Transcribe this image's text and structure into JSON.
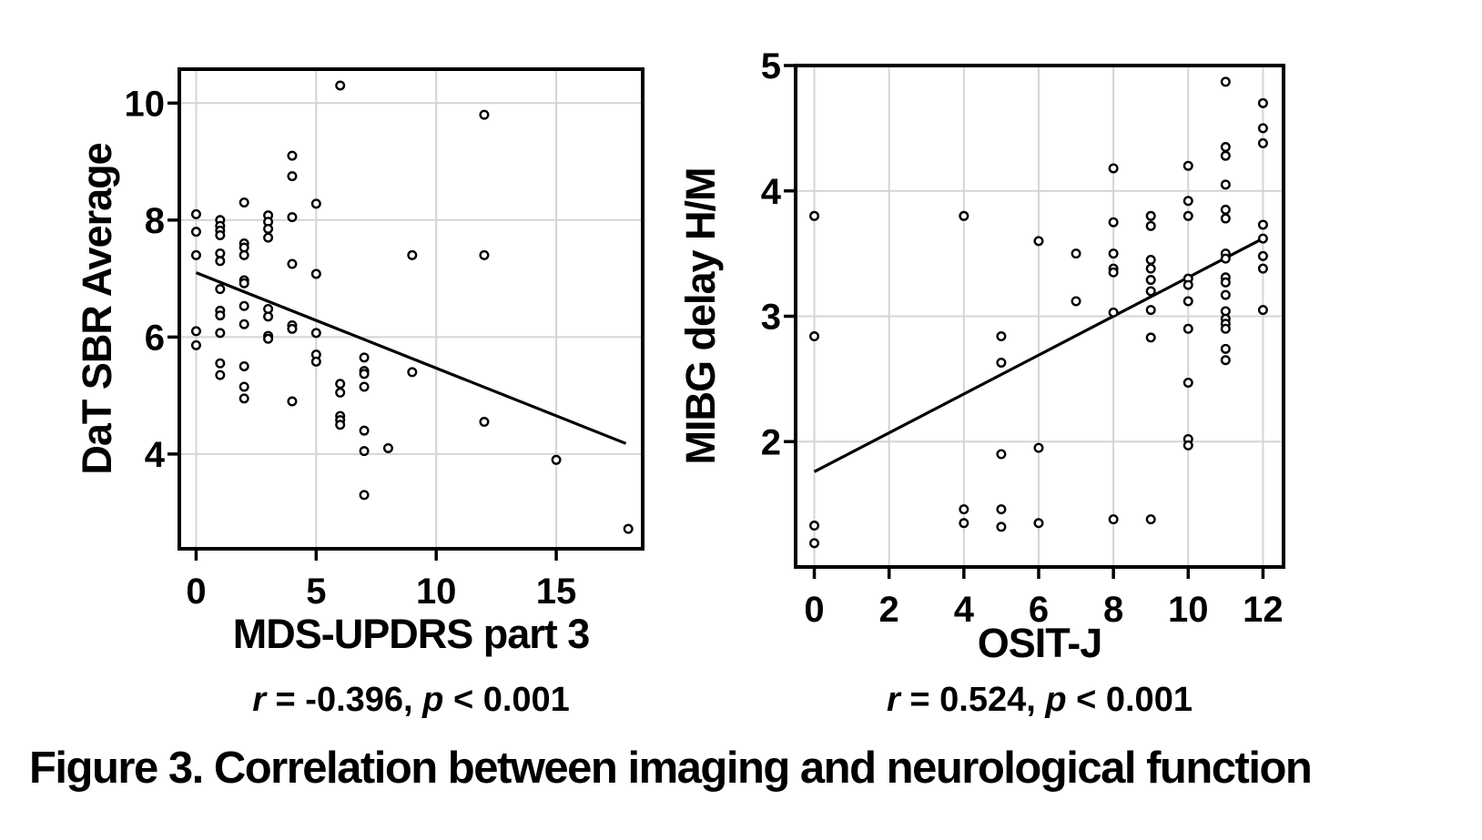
{
  "figure": {
    "caption": "Figure 3. Correlation between imaging and neurological function"
  },
  "style": {
    "axis_color": "#000000",
    "grid_color": "#d4d4d4",
    "point_stroke": "#000000",
    "point_fill": "#ffffff",
    "trend_color": "#000000",
    "text_color": "#000000"
  },
  "chart_data": [
    {
      "type": "scatter",
      "title": "",
      "ylabel": "DaT SBR Average",
      "xlabel": "MDS-UPDRS part 3",
      "stats_text": "r = -0.396, p < 0.001",
      "stats_segments": [
        {
          "t": "r",
          "i": true
        },
        {
          "t": " = -0.396, ",
          "i": false
        },
        {
          "t": "p",
          "i": true
        },
        {
          "t": " < 0.001",
          "i": false
        }
      ],
      "x_ticks": [
        0,
        5,
        10,
        15
      ],
      "y_ticks": [
        4,
        6,
        8,
        10
      ],
      "xlim": [
        -0.7,
        18.6
      ],
      "ylim": [
        2.38,
        10.58
      ],
      "grid": true,
      "legend": "none",
      "trend_line": {
        "x1": 0,
        "y1": 7.1,
        "x2": 17.9,
        "y2": 4.18
      },
      "points": [
        [
          0,
          8.1
        ],
        [
          0,
          7.8
        ],
        [
          0,
          7.4
        ],
        [
          0,
          6.1
        ],
        [
          0,
          5.86
        ],
        [
          1,
          8.0
        ],
        [
          1,
          7.9
        ],
        [
          1,
          7.82
        ],
        [
          1,
          7.74
        ],
        [
          1,
          7.43
        ],
        [
          1,
          7.3
        ],
        [
          1,
          6.82
        ],
        [
          1,
          6.45
        ],
        [
          1,
          6.37
        ],
        [
          1,
          6.07
        ],
        [
          1,
          5.55
        ],
        [
          1,
          5.35
        ],
        [
          2,
          8.3
        ],
        [
          2,
          7.6
        ],
        [
          2,
          7.53
        ],
        [
          2,
          7.4
        ],
        [
          2,
          6.97
        ],
        [
          2,
          6.92
        ],
        [
          2,
          6.53
        ],
        [
          2,
          6.22
        ],
        [
          2,
          5.5
        ],
        [
          2,
          5.15
        ],
        [
          2,
          4.95
        ],
        [
          3,
          8.08
        ],
        [
          3,
          7.97
        ],
        [
          3,
          7.85
        ],
        [
          3,
          7.7
        ],
        [
          3,
          6.48
        ],
        [
          3,
          6.35
        ],
        [
          3,
          6.02
        ],
        [
          3,
          5.97
        ],
        [
          4,
          9.1
        ],
        [
          4,
          8.75
        ],
        [
          4,
          8.05
        ],
        [
          4,
          7.25
        ],
        [
          4,
          6.2
        ],
        [
          4,
          6.14
        ],
        [
          4,
          4.9
        ],
        [
          5,
          8.28
        ],
        [
          5,
          7.08
        ],
        [
          5,
          6.07
        ],
        [
          5,
          5.7
        ],
        [
          5,
          5.58
        ],
        [
          6,
          10.3
        ],
        [
          6,
          5.2
        ],
        [
          6,
          5.05
        ],
        [
          6,
          4.65
        ],
        [
          6,
          4.58
        ],
        [
          6,
          4.5
        ],
        [
          7,
          5.65
        ],
        [
          7,
          5.42
        ],
        [
          7,
          5.37
        ],
        [
          7,
          5.15
        ],
        [
          7,
          4.4
        ],
        [
          7,
          4.05
        ],
        [
          7,
          3.3
        ],
        [
          8,
          4.1
        ],
        [
          9,
          7.4
        ],
        [
          9,
          5.4
        ],
        [
          12,
          9.8
        ],
        [
          12,
          7.4
        ],
        [
          12,
          4.55
        ],
        [
          15,
          3.9
        ],
        [
          18,
          2.72
        ]
      ]
    },
    {
      "type": "scatter",
      "title": "",
      "ylabel": "MIBG delay H/M",
      "xlabel": "OSIT-J",
      "stats_text": "r = 0.524, p < 0.001",
      "stats_segments": [
        {
          "t": "r",
          "i": true
        },
        {
          "t": " = 0.524, ",
          "i": false
        },
        {
          "t": "p",
          "i": true
        },
        {
          "t": " < 0.001",
          "i": false
        }
      ],
      "x_ticks": [
        0,
        2,
        4,
        6,
        8,
        10,
        12
      ],
      "y_ticks": [
        2,
        3,
        4,
        5
      ],
      "xlim": [
        -0.5,
        12.55
      ],
      "ylim": [
        1.0,
        5.0
      ],
      "grid": true,
      "legend": "none",
      "trend_line": {
        "x1": 0,
        "y1": 1.76,
        "x2": 12,
        "y2": 3.62
      },
      "points": [
        [
          0,
          3.8
        ],
        [
          0,
          2.84
        ],
        [
          0,
          1.33
        ],
        [
          0,
          1.19
        ],
        [
          4,
          3.8
        ],
        [
          4,
          1.46
        ],
        [
          4,
          1.35
        ],
        [
          5,
          2.84
        ],
        [
          5,
          2.63
        ],
        [
          5,
          1.9
        ],
        [
          5,
          1.46
        ],
        [
          5,
          1.32
        ],
        [
          6,
          3.6
        ],
        [
          6,
          1.95
        ],
        [
          6,
          1.35
        ],
        [
          7,
          3.5
        ],
        [
          7,
          3.12
        ],
        [
          8,
          4.18
        ],
        [
          8,
          3.75
        ],
        [
          8,
          3.5
        ],
        [
          8,
          3.38
        ],
        [
          8,
          3.35
        ],
        [
          8,
          3.03
        ],
        [
          8,
          1.38
        ],
        [
          9,
          3.8
        ],
        [
          9,
          3.72
        ],
        [
          9,
          3.45
        ],
        [
          9,
          3.38
        ],
        [
          9,
          3.29
        ],
        [
          9,
          3.2
        ],
        [
          9,
          3.05
        ],
        [
          9,
          2.83
        ],
        [
          9,
          1.38
        ],
        [
          10,
          4.2
        ],
        [
          10,
          3.92
        ],
        [
          10,
          3.8
        ],
        [
          10,
          3.3
        ],
        [
          10,
          3.25
        ],
        [
          10,
          3.12
        ],
        [
          10,
          2.9
        ],
        [
          10,
          2.47
        ],
        [
          10,
          2.02
        ],
        [
          10,
          1.97
        ],
        [
          11,
          4.87
        ],
        [
          11,
          4.35
        ],
        [
          11,
          4.28
        ],
        [
          11,
          4.05
        ],
        [
          11,
          3.85
        ],
        [
          11,
          3.78
        ],
        [
          11,
          3.5
        ],
        [
          11,
          3.46
        ],
        [
          11,
          3.31
        ],
        [
          11,
          3.27
        ],
        [
          11,
          3.17
        ],
        [
          11,
          3.04
        ],
        [
          11,
          2.98
        ],
        [
          11,
          2.94
        ],
        [
          11,
          2.9
        ],
        [
          11,
          2.74
        ],
        [
          11,
          2.65
        ],
        [
          12,
          4.7
        ],
        [
          12,
          4.5
        ],
        [
          12,
          4.38
        ],
        [
          12,
          3.73
        ],
        [
          12,
          3.62
        ],
        [
          12,
          3.48
        ],
        [
          12,
          3.38
        ],
        [
          12,
          3.05
        ]
      ]
    }
  ]
}
